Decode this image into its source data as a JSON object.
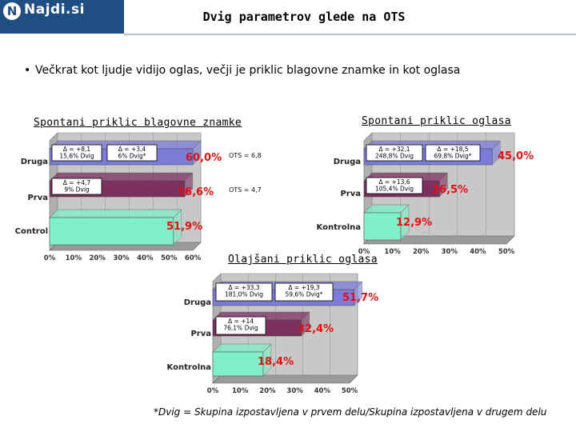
{
  "logo": {
    "text": "Najdi.si",
    "badge": "N"
  },
  "title": "Dvig parametrov glede na OTS",
  "bullet": "Večkrat kot ljudje vidijo oglas, večji je priklic blagovne znamke in kot oglasa",
  "footnote": "*Dvig = Skupina izpostavljena v prvem delu/Skupina izpostavljena v drugem delu",
  "colors": {
    "bar_1": "#7b7bd8",
    "bar_2": "#7b3060",
    "bar_3": "#80f0c8",
    "value_red": "#e01010",
    "wall": "#b0b0b0"
  },
  "chart_data": [
    {
      "type": "bar",
      "orientation": "horizontal",
      "title": "Spontani priklic blagovne znamke",
      "categories": [
        "Druga",
        "Prva",
        "Control"
      ],
      "values": [
        60.0,
        56.6,
        51.9
      ],
      "value_labels": [
        "60,0%",
        "56,6%",
        "51,9%"
      ],
      "x_ticks": [
        "0%",
        "10%",
        "20%",
        "30%",
        "40%",
        "50%",
        "60%"
      ],
      "xlim": [
        0,
        60
      ],
      "annotations": [
        {
          "row": 0,
          "text": "Δ = +8,1\n15,6% Dvig"
        },
        {
          "row": 0,
          "text": "Δ = +3,4\n6% Dvig*"
        },
        {
          "row": 1,
          "text": "Δ = +4,7\n9% Dvig"
        }
      ],
      "ots_labels": [
        "OTS = 6,8",
        "OTS = 4,7"
      ]
    },
    {
      "type": "bar",
      "orientation": "horizontal",
      "title": "Spontani priklic oglasa",
      "categories": [
        "Druga",
        "Prva",
        "Kontrolna"
      ],
      "values": [
        45.0,
        26.5,
        12.9
      ],
      "value_labels": [
        "45,0%",
        "26,5%",
        "12,9%"
      ],
      "x_ticks": [
        "0%",
        "10%",
        "20%",
        "30%",
        "40%",
        "50%"
      ],
      "xlim": [
        0,
        50
      ],
      "annotations": [
        {
          "row": 0,
          "text": "Δ = +32,1\n248,8% Dvig"
        },
        {
          "row": 0,
          "text": "Δ = +18,5\n69,8% Dvig*"
        },
        {
          "row": 1,
          "text": "Δ = +13,6\n105,4% Dvig"
        }
      ]
    },
    {
      "type": "bar",
      "orientation": "horizontal",
      "title": "Olajšani priklic oglasa",
      "categories": [
        "Druga",
        "Prva",
        "Kontrolna"
      ],
      "values": [
        51.7,
        32.4,
        18.4
      ],
      "value_labels": [
        "51,7%",
        "32,4%",
        "18,4%"
      ],
      "x_ticks": [
        "0%",
        "10%",
        "20%",
        "30%",
        "40%",
        "50%"
      ],
      "xlim": [
        0,
        50
      ],
      "annotations": [
        {
          "row": 0,
          "text": "Δ = +33,3\n181,0% Dvig"
        },
        {
          "row": 0,
          "text": "Δ = +19,3\n59,6% Dvig*"
        },
        {
          "row": 1,
          "text": "Δ = +14\n76,1% Dvig"
        }
      ]
    }
  ]
}
